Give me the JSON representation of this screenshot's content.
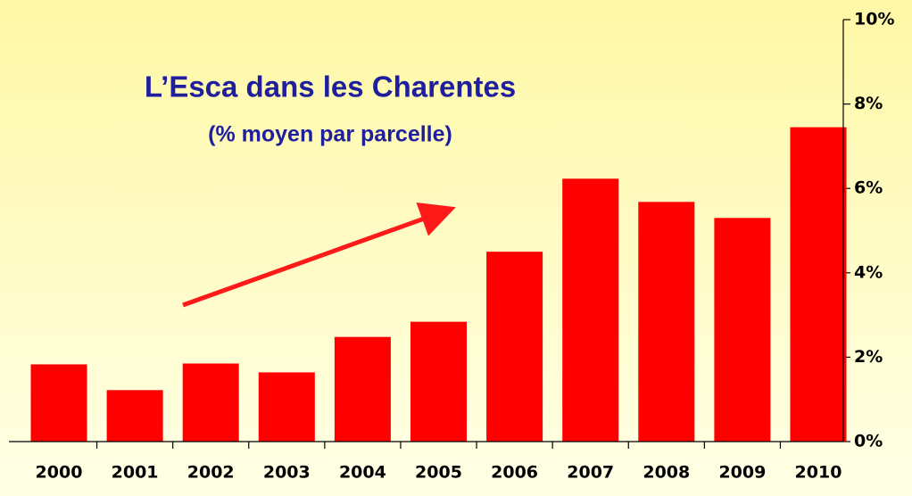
{
  "chart_data": {
    "type": "bar",
    "title": "L’Esca dans les Charentes",
    "subtitle": "(% moyen par parcelle)",
    "categories": [
      "2000",
      "2001",
      "2002",
      "2003",
      "2004",
      "2005",
      "2006",
      "2007",
      "2008",
      "2009",
      "2010"
    ],
    "values": [
      1.83,
      1.22,
      1.85,
      1.64,
      2.48,
      2.84,
      4.5,
      6.23,
      5.68,
      5.3,
      7.45
    ],
    "color": "#ff0000",
    "ylim": [
      0,
      10
    ],
    "yticks": [
      {
        "value": 0,
        "label": "0%"
      },
      {
        "value": 2,
        "label": "2%"
      },
      {
        "value": 4,
        "label": "4%"
      },
      {
        "value": 6,
        "label": "6%"
      },
      {
        "value": 8,
        "label": "8%"
      },
      {
        "value": 10,
        "label": "10%"
      }
    ]
  }
}
